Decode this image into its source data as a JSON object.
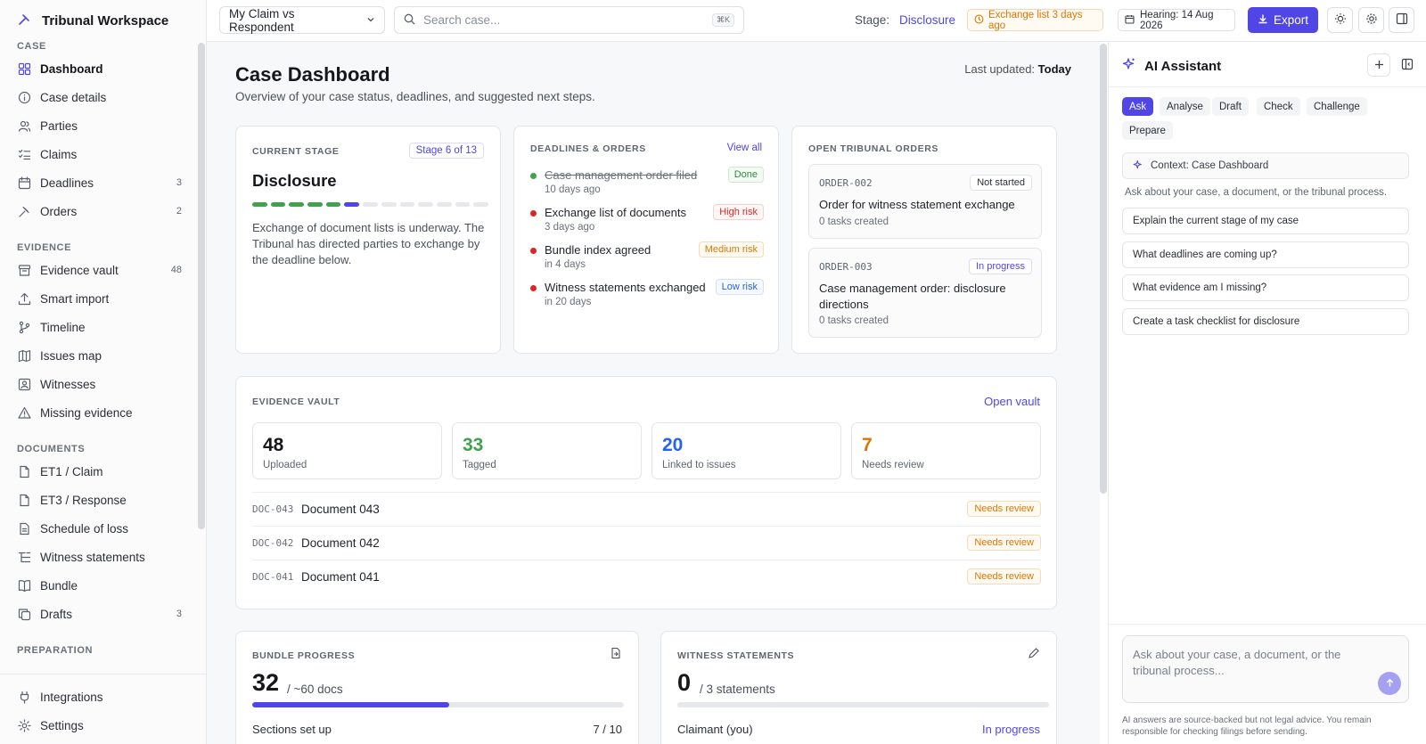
{
  "brand": {
    "title": "Tribunal Workspace"
  },
  "sidebar": {
    "sections": [
      {
        "label": "CASE",
        "items": [
          {
            "label": "Dashboard",
            "icon": "grid-icon",
            "active": true,
            "count": ""
          },
          {
            "label": "Case details",
            "icon": "info-icon",
            "count": ""
          },
          {
            "label": "Parties",
            "icon": "users-icon",
            "count": ""
          },
          {
            "label": "Claims",
            "icon": "list-check-icon",
            "count": ""
          },
          {
            "label": "Deadlines",
            "icon": "calendar-icon",
            "count": "3"
          },
          {
            "label": "Orders",
            "icon": "gavel-icon",
            "count": "2"
          }
        ]
      },
      {
        "label": "EVIDENCE",
        "items": [
          {
            "label": "Evidence vault",
            "icon": "archive-icon",
            "count": "48"
          },
          {
            "label": "Smart import",
            "icon": "upload-icon",
            "count": ""
          },
          {
            "label": "Timeline",
            "icon": "branch-icon",
            "count": ""
          },
          {
            "label": "Issues map",
            "icon": "map-icon",
            "count": ""
          },
          {
            "label": "Witnesses",
            "icon": "contact-icon",
            "count": ""
          },
          {
            "label": "Missing evidence",
            "icon": "warning-icon",
            "count": ""
          }
        ]
      },
      {
        "label": "DOCUMENTS",
        "items": [
          {
            "label": "ET1 / Claim",
            "icon": "file-icon",
            "count": ""
          },
          {
            "label": "ET3 / Response",
            "icon": "file-icon",
            "count": ""
          },
          {
            "label": "Schedule of loss",
            "icon": "file-text-icon",
            "count": ""
          },
          {
            "label": "Witness statements",
            "icon": "list-tree-icon",
            "count": ""
          },
          {
            "label": "Bundle",
            "icon": "book-icon",
            "count": ""
          },
          {
            "label": "Drafts",
            "icon": "copy-icon",
            "count": "3"
          }
        ]
      },
      {
        "label": "PREPARATION",
        "items": []
      }
    ],
    "bottom": [
      {
        "label": "Integrations",
        "icon": "plug-icon"
      },
      {
        "label": "Settings",
        "icon": "gear-icon"
      }
    ]
  },
  "topbar": {
    "claim_select": "My Claim vs Respondent",
    "search_placeholder": "Search case...",
    "search_shortcut": "⌘K",
    "stage_label": "Stage:",
    "stage_value": "Disclosure",
    "exchange_chip": "Exchange list 3 days ago",
    "hearing_chip": "Hearing: 14 Aug 2026",
    "export_label": "Export"
  },
  "main": {
    "title": "Case Dashboard",
    "subtitle": "Overview of your case status, deadlines, and suggested next steps.",
    "last_updated_label": "Last updated:",
    "last_updated_value": "Today",
    "current_stage": {
      "label": "CURRENT STAGE",
      "badge": "Stage 6 of 13",
      "name": "Disclosure",
      "stage_index": 6,
      "stage_total": 13,
      "description": "Exchange of document lists is underway. The Tribunal has directed parties to exchange by the deadline below."
    },
    "deadlines": {
      "label": "DEADLINES & ORDERS",
      "view_all": "View all",
      "items": [
        {
          "title": "Case management order filed",
          "sub": "10 days ago",
          "risk": "Done",
          "kind": "done",
          "dot": "#3fa34d"
        },
        {
          "title": "Exchange list of documents",
          "sub": "3 days ago",
          "risk": "High risk",
          "kind": "high",
          "dot": "#dc2626"
        },
        {
          "title": "Bundle index agreed",
          "sub": "in 4 days",
          "risk": "Medium risk",
          "kind": "med",
          "dot": "#dc2626"
        },
        {
          "title": "Witness statements exchanged",
          "sub": "in 20 days",
          "risk": "Low risk",
          "kind": "low",
          "dot": "#dc2626"
        }
      ]
    },
    "orders": {
      "label": "OPEN TRIBUNAL ORDERS",
      "items": [
        {
          "id": "ORDER-002",
          "status": "Not started",
          "title": "Order for witness statement exchange",
          "tasks": "0 tasks created"
        },
        {
          "id": "ORDER-003",
          "status": "In progress",
          "title": "Case management order: disclosure directions",
          "tasks": "0 tasks created"
        }
      ]
    },
    "vault": {
      "label": "EVIDENCE VAULT",
      "open": "Open vault",
      "stats": [
        {
          "num": "48",
          "label": "Uploaded",
          "color": "#15171a"
        },
        {
          "num": "33",
          "label": "Tagged",
          "color": "#3fa34d"
        },
        {
          "num": "20",
          "label": "Linked to issues",
          "color": "#2563eb"
        },
        {
          "num": "7",
          "label": "Needs review",
          "color": "#d97706"
        }
      ],
      "docs": [
        {
          "id": "DOC-043",
          "name": "Document 043",
          "badge": "Needs review"
        },
        {
          "id": "DOC-042",
          "name": "Document 042",
          "badge": "Needs review"
        },
        {
          "id": "DOC-041",
          "name": "Document 041",
          "badge": "Needs review"
        }
      ]
    },
    "bundle": {
      "label": "BUNDLE PROGRESS",
      "count": "32",
      "of": "/ ~60 docs",
      "progress": 0.53,
      "sections_label": "Sections set up",
      "sections_value": "7 / 10"
    },
    "witness": {
      "label": "WITNESS STATEMENTS",
      "count": "0",
      "of": "/ 3 statements",
      "row_label": "Claimant (you)",
      "row_status": "In progress"
    }
  },
  "assistant": {
    "title": "AI Assistant",
    "tabs": [
      "Ask",
      "Analyse",
      "Draft",
      "Check",
      "Challenge",
      "Prepare"
    ],
    "active_tab": "Ask",
    "context": "Context: Case Dashboard",
    "hint": "Ask about your case, a document, or the tribunal process.",
    "suggestions": [
      "Explain the current stage of my case",
      "What deadlines are coming up?",
      "What evidence am I missing?",
      "Create a task checklist for disclosure"
    ],
    "compose_placeholder": "Ask about your case, a document, or the tribunal process...",
    "disclaimer": "AI answers are source-backed but not legal advice. You remain responsible for checking filings before sending."
  },
  "colors": {
    "accent": "#4f46e5",
    "success": "#3fa34d",
    "danger": "#dc2626",
    "warning": "#d97706",
    "info": "#2563eb"
  }
}
